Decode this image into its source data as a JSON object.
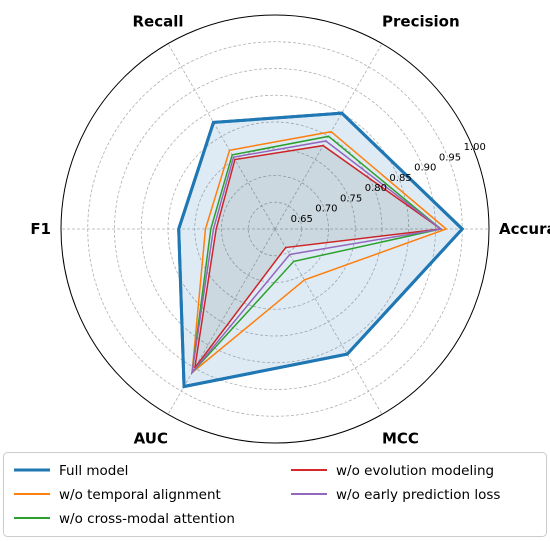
{
  "chart_data": {
    "type": "radar",
    "axes": [
      "Accuracy",
      "Precision",
      "Recall",
      "F1",
      "AUC",
      "MCC"
    ],
    "radial_range": [
      0.6,
      1.0
    ],
    "radial_ticks": [
      "0.65",
      "0.70",
      "0.75",
      "0.80",
      "0.85",
      "0.90",
      "0.95",
      "1.00"
    ],
    "radial_tick_values": [
      0.65,
      0.7,
      0.75,
      0.8,
      0.85,
      0.9,
      0.95,
      1.0
    ],
    "grid": true,
    "legend_position": "bottom",
    "series": [
      {
        "name": "Full model",
        "color": "#1f77b4",
        "values": [
          0.95,
          0.85,
          0.83,
          0.78,
          0.94,
          0.87
        ],
        "fill": true
      },
      {
        "name": "w/o temporal alignment",
        "color": "#ff7f0e",
        "values": [
          0.92,
          0.81,
          0.77,
          0.73,
          0.91,
          0.71
        ]
      },
      {
        "name": "w/o cross-modal attention",
        "color": "#2ca02c",
        "values": [
          0.91,
          0.8,
          0.76,
          0.72,
          0.91,
          0.67
        ]
      },
      {
        "name": "w/o evolution modeling",
        "color": "#d62728",
        "values": [
          0.91,
          0.78,
          0.75,
          0.71,
          0.9,
          0.64
        ]
      },
      {
        "name": "w/o early prediction loss",
        "color": "#9467bd",
        "values": [
          0.91,
          0.79,
          0.755,
          0.715,
          0.91,
          0.655
        ]
      }
    ]
  }
}
